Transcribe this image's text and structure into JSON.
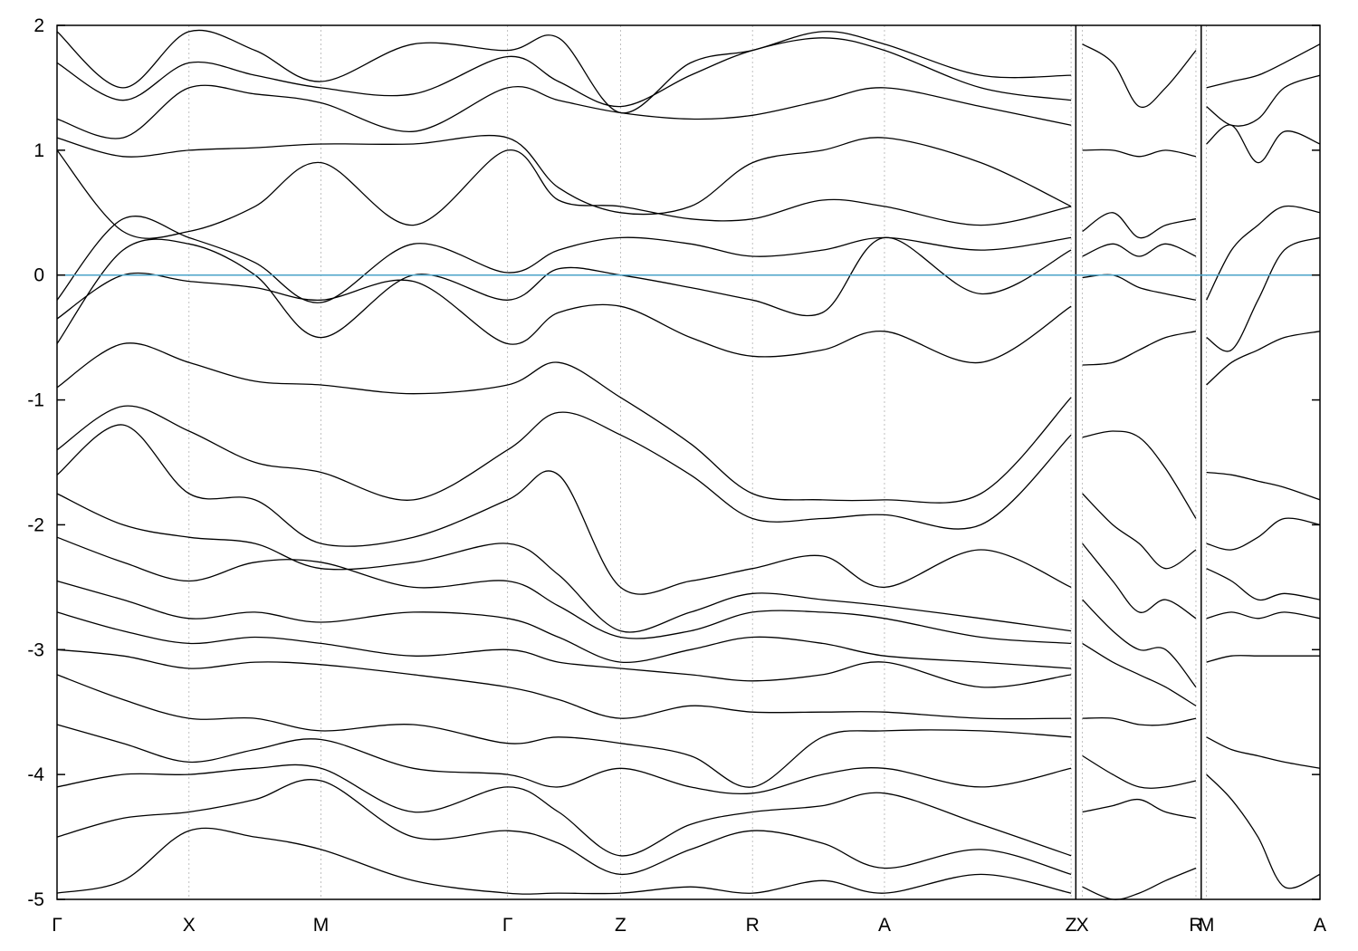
{
  "chart_data": {
    "type": "line",
    "title": "",
    "xlabel": "",
    "ylabel": "",
    "ylim": [
      -5,
      2
    ],
    "y_ticks": [
      "-5",
      "-4",
      "-3",
      "-2",
      "-1",
      "0",
      "1",
      "2"
    ],
    "high_symmetry_points": [
      {
        "label": "Γ",
        "x": 0.0
      },
      {
        "label": "X",
        "x": 1.0
      },
      {
        "label": "M",
        "x": 2.0
      },
      {
        "label": "Γ",
        "x": 3.414
      },
      {
        "label": "Z",
        "x": 4.27
      },
      {
        "label": "R",
        "x": 5.27
      },
      {
        "label": "A",
        "x": 6.27
      },
      {
        "label": "Z",
        "x": 7.684
      },
      {
        "label": "X",
        "x": 7.77
      },
      {
        "label": "R",
        "x": 8.63
      },
      {
        "label": "M",
        "x": 8.71
      },
      {
        "label": "A",
        "x": 9.57
      }
    ],
    "segment_breaks": [
      7.72,
      8.67
    ],
    "fermi_level": 0,
    "grid": "vertical dashed at high-symmetry points",
    "colors": {
      "bands": "#000000",
      "fermi": "#4aa3c8",
      "grid": "#b0b0b0"
    },
    "series": [
      {
        "x": [
          0,
          0.5,
          1.0,
          1.5,
          2.0,
          2.7,
          3.414,
          3.8,
          4.27,
          4.8,
          5.27,
          5.8,
          6.27,
          7.0,
          7.684
        ],
        "values": [
          1.95,
          1.5,
          1.95,
          1.8,
          1.55,
          1.85,
          1.8,
          1.9,
          1.3,
          1.7,
          1.8,
          1.95,
          1.85,
          1.6,
          1.6
        ]
      },
      {
        "x": [
          0,
          0.5,
          1.0,
          1.5,
          2.0,
          2.7,
          3.414,
          3.8,
          4.27,
          4.8,
          5.27,
          5.8,
          6.27,
          7.0,
          7.684
        ],
        "values": [
          1.7,
          1.4,
          1.7,
          1.6,
          1.5,
          1.45,
          1.75,
          1.55,
          1.35,
          1.6,
          1.8,
          1.9,
          1.8,
          1.5,
          1.4
        ]
      },
      {
        "x": [
          0,
          0.5,
          1.0,
          1.5,
          2.0,
          2.7,
          3.414,
          3.8,
          4.27,
          4.8,
          5.27,
          5.8,
          6.27,
          7.0,
          7.684
        ],
        "values": [
          1.25,
          1.1,
          1.5,
          1.45,
          1.38,
          1.15,
          1.5,
          1.4,
          1.3,
          1.25,
          1.28,
          1.4,
          1.5,
          1.35,
          1.2
        ]
      },
      {
        "x": [
          0,
          0.5,
          1.0,
          1.5,
          2.0,
          2.7,
          3.414,
          3.8,
          4.27,
          4.8,
          5.27,
          5.8,
          6.27,
          7.0,
          7.684
        ],
        "values": [
          1.1,
          0.95,
          1.0,
          1.02,
          1.05,
          1.05,
          1.1,
          0.7,
          0.5,
          0.55,
          0.9,
          1.0,
          1.1,
          0.9,
          0.55
        ]
      },
      {
        "x": [
          0,
          0.5,
          1.0,
          1.5,
          2.0,
          2.7,
          3.414,
          3.8,
          4.27,
          4.8,
          5.27,
          5.8,
          6.27,
          7.0,
          7.684
        ],
        "values": [
          1.0,
          0.35,
          0.35,
          0.55,
          0.9,
          0.4,
          1.0,
          0.6,
          0.55,
          0.45,
          0.45,
          0.6,
          0.55,
          0.4,
          0.55
        ]
      },
      {
        "x": [
          0,
          0.5,
          1.0,
          1.5,
          2.0,
          2.7,
          3.414,
          3.8,
          4.27,
          4.8,
          5.27,
          5.8,
          6.27,
          7.0,
          7.684
        ],
        "values": [
          -0.2,
          0.45,
          0.3,
          0.1,
          -0.22,
          0.25,
          0.02,
          0.2,
          0.3,
          0.25,
          0.15,
          0.2,
          0.3,
          0.2,
          0.3
        ]
      },
      {
        "x": [
          0,
          0.5,
          1.0,
          1.5,
          2.0,
          2.7,
          3.414,
          3.8,
          4.27,
          4.8,
          5.27,
          5.8,
          6.27,
          7.0,
          7.684
        ],
        "values": [
          -0.55,
          0.2,
          0.25,
          0.0,
          -0.5,
          0.0,
          -0.2,
          0.05,
          0.0,
          -0.1,
          -0.2,
          -0.3,
          0.3,
          -0.15,
          0.2
        ]
      },
      {
        "x": [
          0,
          0.5,
          1.0,
          1.5,
          2.0,
          2.7,
          3.414,
          3.8,
          4.27,
          4.8,
          5.27,
          5.8,
          6.27,
          7.0,
          7.684
        ],
        "values": [
          -0.35,
          0.0,
          -0.05,
          -0.1,
          -0.2,
          -0.05,
          -0.55,
          -0.3,
          -0.25,
          -0.5,
          -0.65,
          -0.6,
          -0.45,
          -0.7,
          -0.25
        ]
      },
      {
        "x": [
          0,
          0.5,
          1.0,
          1.5,
          2.0,
          2.7,
          3.414,
          3.8,
          4.27,
          4.8,
          5.27,
          5.8,
          6.27,
          7.0,
          7.684
        ],
        "values": [
          -0.9,
          -0.55,
          -0.7,
          -0.85,
          -0.88,
          -0.95,
          -0.88,
          -0.7,
          -0.98,
          -1.35,
          -1.75,
          -1.8,
          -1.8,
          -1.75,
          -0.98
        ]
      },
      {
        "x": [
          0,
          0.5,
          1.0,
          1.5,
          2.0,
          2.7,
          3.414,
          3.8,
          4.27,
          4.8,
          5.27,
          5.8,
          6.27,
          7.0,
          7.684
        ],
        "values": [
          -1.4,
          -1.05,
          -1.25,
          -1.5,
          -1.58,
          -1.8,
          -1.4,
          -1.1,
          -1.28,
          -1.6,
          -1.95,
          -1.95,
          -1.92,
          -2.0,
          -1.28
        ]
      },
      {
        "x": [
          0,
          0.5,
          1.0,
          1.5,
          2.0,
          2.7,
          3.414,
          3.8,
          4.27,
          4.8,
          5.27,
          5.8,
          6.27,
          7.0,
          7.684
        ],
        "values": [
          -1.6,
          -1.2,
          -1.75,
          -1.8,
          -2.15,
          -2.1,
          -1.8,
          -1.6,
          -2.5,
          -2.45,
          -2.35,
          -2.25,
          -2.5,
          -2.2,
          -2.5
        ]
      },
      {
        "x": [
          0,
          0.5,
          1.0,
          1.5,
          2.0,
          2.7,
          3.414,
          3.8,
          4.27,
          4.8,
          5.27,
          5.8,
          6.27,
          7.0,
          7.684
        ],
        "values": [
          -1.75,
          -2.0,
          -2.1,
          -2.15,
          -2.35,
          -2.3,
          -2.15,
          -2.4,
          -2.85,
          -2.7,
          -2.55,
          -2.6,
          -2.65,
          -2.75,
          -2.85
        ]
      },
      {
        "x": [
          0,
          0.5,
          1.0,
          1.5,
          2.0,
          2.7,
          3.414,
          3.8,
          4.27,
          4.8,
          5.27,
          5.8,
          6.27,
          7.0,
          7.684
        ],
        "values": [
          -2.1,
          -2.3,
          -2.45,
          -2.3,
          -2.3,
          -2.5,
          -2.45,
          -2.65,
          -2.9,
          -2.85,
          -2.7,
          -2.7,
          -2.75,
          -2.9,
          -2.95
        ]
      },
      {
        "x": [
          0,
          0.5,
          1.0,
          1.5,
          2.0,
          2.7,
          3.414,
          3.8,
          4.27,
          4.8,
          5.27,
          5.8,
          6.27,
          7.0,
          7.684
        ],
        "values": [
          -2.45,
          -2.6,
          -2.75,
          -2.7,
          -2.78,
          -2.7,
          -2.75,
          -2.9,
          -3.1,
          -3.0,
          -2.9,
          -2.95,
          -3.05,
          -3.1,
          -3.15
        ]
      },
      {
        "x": [
          0,
          0.5,
          1.0,
          1.5,
          2.0,
          2.7,
          3.414,
          3.8,
          4.27,
          4.8,
          5.27,
          5.8,
          6.27,
          7.0,
          7.684
        ],
        "values": [
          -2.7,
          -2.85,
          -2.95,
          -2.9,
          -2.95,
          -3.05,
          -3.0,
          -3.1,
          -3.15,
          -3.2,
          -3.25,
          -3.2,
          -3.1,
          -3.3,
          -3.2
        ]
      },
      {
        "x": [
          0,
          0.5,
          1.0,
          1.5,
          2.0,
          2.7,
          3.414,
          3.8,
          4.27,
          4.8,
          5.27,
          5.8,
          6.27,
          7.0,
          7.684
        ],
        "values": [
          -3.0,
          -3.05,
          -3.15,
          -3.1,
          -3.12,
          -3.2,
          -3.3,
          -3.4,
          -3.55,
          -3.45,
          -3.5,
          -3.5,
          -3.5,
          -3.55,
          -3.55
        ]
      },
      {
        "x": [
          0,
          0.5,
          1.0,
          1.5,
          2.0,
          2.7,
          3.414,
          3.8,
          4.27,
          4.8,
          5.27,
          5.8,
          6.27,
          7.0,
          7.684
        ],
        "values": [
          -3.2,
          -3.4,
          -3.55,
          -3.55,
          -3.65,
          -3.6,
          -3.75,
          -3.7,
          -3.75,
          -3.85,
          -4.1,
          -3.7,
          -3.65,
          -3.65,
          -3.7
        ]
      },
      {
        "x": [
          0,
          0.5,
          1.0,
          1.5,
          2.0,
          2.7,
          3.414,
          3.8,
          4.27,
          4.8,
          5.27,
          5.8,
          6.27,
          7.0,
          7.684
        ],
        "values": [
          -3.6,
          -3.75,
          -3.9,
          -3.8,
          -3.72,
          -3.95,
          -4.0,
          -4.1,
          -3.95,
          -4.1,
          -4.15,
          -4.0,
          -3.95,
          -4.1,
          -3.95
        ]
      },
      {
        "x": [
          0,
          0.5,
          1.0,
          1.5,
          2.0,
          2.7,
          3.414,
          3.8,
          4.27,
          4.8,
          5.27,
          5.8,
          6.27,
          7.0,
          7.684
        ],
        "values": [
          -4.1,
          -4.0,
          -4.0,
          -3.95,
          -3.95,
          -4.3,
          -4.1,
          -4.3,
          -4.65,
          -4.4,
          -4.3,
          -4.25,
          -4.15,
          -4.4,
          -4.65
        ]
      },
      {
        "x": [
          0,
          0.5,
          1.0,
          1.5,
          2.0,
          2.7,
          3.414,
          3.8,
          4.27,
          4.8,
          5.27,
          5.8,
          6.27,
          7.0,
          7.684
        ],
        "values": [
          -4.5,
          -4.35,
          -4.3,
          -4.2,
          -4.05,
          -4.5,
          -4.45,
          -4.55,
          -4.8,
          -4.6,
          -4.45,
          -4.55,
          -4.75,
          -4.6,
          -4.8
        ]
      },
      {
        "x": [
          0,
          0.5,
          1.0,
          1.5,
          2.0,
          2.7,
          3.414,
          3.8,
          4.27,
          4.8,
          5.27,
          5.8,
          6.27,
          7.0,
          7.684
        ],
        "values": [
          -4.95,
          -4.85,
          -4.45,
          -4.5,
          -4.6,
          -4.85,
          -4.95,
          -4.95,
          -4.95,
          -4.9,
          -4.95,
          -4.85,
          -4.95,
          -4.8,
          -4.95
        ]
      },
      {
        "x": [
          7.77,
          8.0,
          8.2,
          8.4,
          8.63
        ],
        "values": [
          1.85,
          1.7,
          1.35,
          1.5,
          1.8
        ]
      },
      {
        "x": [
          7.77,
          8.0,
          8.2,
          8.4,
          8.63
        ],
        "values": [
          1.0,
          1.0,
          0.95,
          1.0,
          0.95
        ]
      },
      {
        "x": [
          7.77,
          8.0,
          8.2,
          8.4,
          8.63
        ],
        "values": [
          0.35,
          0.5,
          0.3,
          0.4,
          0.45
        ]
      },
      {
        "x": [
          7.77,
          8.0,
          8.2,
          8.4,
          8.63
        ],
        "values": [
          0.15,
          0.25,
          0.15,
          0.25,
          0.15
        ]
      },
      {
        "x": [
          7.77,
          8.0,
          8.2,
          8.4,
          8.63
        ],
        "values": [
          -0.02,
          0.0,
          -0.1,
          -0.15,
          -0.2
        ]
      },
      {
        "x": [
          7.77,
          8.0,
          8.2,
          8.4,
          8.63
        ],
        "values": [
          -0.72,
          -0.7,
          -0.6,
          -0.5,
          -0.45
        ]
      },
      {
        "x": [
          7.77,
          8.0,
          8.2,
          8.4,
          8.63
        ],
        "values": [
          -1.3,
          -1.25,
          -1.3,
          -1.55,
          -1.95
        ]
      },
      {
        "x": [
          7.77,
          8.0,
          8.2,
          8.4,
          8.63
        ],
        "values": [
          -1.75,
          -2.0,
          -2.15,
          -2.35,
          -2.2
        ]
      },
      {
        "x": [
          7.77,
          8.0,
          8.2,
          8.4,
          8.63
        ],
        "values": [
          -2.15,
          -2.45,
          -2.7,
          -2.6,
          -2.75
        ]
      },
      {
        "x": [
          7.77,
          8.0,
          8.2,
          8.4,
          8.63
        ],
        "values": [
          -2.6,
          -2.85,
          -3.0,
          -3.0,
          -3.3
        ]
      },
      {
        "x": [
          7.77,
          8.0,
          8.2,
          8.4,
          8.63
        ],
        "values": [
          -2.95,
          -3.1,
          -3.2,
          -3.3,
          -3.45
        ]
      },
      {
        "x": [
          7.77,
          8.0,
          8.2,
          8.4,
          8.63
        ],
        "values": [
          -3.55,
          -3.55,
          -3.6,
          -3.6,
          -3.55
        ]
      },
      {
        "x": [
          7.77,
          8.0,
          8.2,
          8.4,
          8.63
        ],
        "values": [
          -3.85,
          -4.0,
          -4.1,
          -4.1,
          -4.05
        ]
      },
      {
        "x": [
          7.77,
          8.0,
          8.2,
          8.4,
          8.63
        ],
        "values": [
          -4.3,
          -4.25,
          -4.2,
          -4.3,
          -4.35
        ]
      },
      {
        "x": [
          7.77,
          8.0,
          8.2,
          8.4,
          8.63
        ],
        "values": [
          -4.9,
          -5.0,
          -4.95,
          -4.85,
          -4.75
        ]
      },
      {
        "x": [
          8.71,
          8.9,
          9.1,
          9.3,
          9.57
        ],
        "values": [
          1.5,
          1.55,
          1.6,
          1.7,
          1.85
        ]
      },
      {
        "x": [
          8.71,
          8.9,
          9.1,
          9.3,
          9.57
        ],
        "values": [
          1.35,
          1.2,
          1.25,
          1.5,
          1.6
        ]
      },
      {
        "x": [
          8.71,
          8.9,
          9.1,
          9.3,
          9.57
        ],
        "values": [
          1.05,
          1.2,
          0.9,
          1.15,
          1.05
        ]
      },
      {
        "x": [
          8.71,
          8.9,
          9.1,
          9.3,
          9.57
        ],
        "values": [
          -0.2,
          0.2,
          0.4,
          0.55,
          0.5
        ]
      },
      {
        "x": [
          8.71,
          8.9,
          9.1,
          9.3,
          9.57
        ],
        "values": [
          -0.5,
          -0.6,
          -0.2,
          0.2,
          0.3
        ]
      },
      {
        "x": [
          8.71,
          8.9,
          9.1,
          9.3,
          9.57
        ],
        "values": [
          -0.88,
          -0.7,
          -0.6,
          -0.5,
          -0.45
        ]
      },
      {
        "x": [
          8.71,
          8.9,
          9.1,
          9.3,
          9.57
        ],
        "values": [
          -1.58,
          -1.6,
          -1.65,
          -1.7,
          -1.8
        ]
      },
      {
        "x": [
          8.71,
          8.9,
          9.1,
          9.3,
          9.57
        ],
        "values": [
          -2.15,
          -2.2,
          -2.1,
          -1.95,
          -2.0
        ]
      },
      {
        "x": [
          8.71,
          8.9,
          9.1,
          9.3,
          9.57
        ],
        "values": [
          -2.35,
          -2.45,
          -2.6,
          -2.55,
          -2.6
        ]
      },
      {
        "x": [
          8.71,
          8.9,
          9.1,
          9.3,
          9.57
        ],
        "values": [
          -2.75,
          -2.7,
          -2.75,
          -2.7,
          -2.75
        ]
      },
      {
        "x": [
          8.71,
          8.9,
          9.1,
          9.3,
          9.57
        ],
        "values": [
          -3.1,
          -3.05,
          -3.05,
          -3.05,
          -3.05
        ]
      },
      {
        "x": [
          8.71,
          8.9,
          9.1,
          9.3,
          9.57
        ],
        "values": [
          -3.7,
          -3.8,
          -3.85,
          -3.9,
          -3.95
        ]
      },
      {
        "x": [
          8.71,
          8.9,
          9.1,
          9.3,
          9.57
        ],
        "values": [
          -4.0,
          -4.2,
          -4.5,
          -4.9,
          -4.8
        ]
      }
    ]
  }
}
